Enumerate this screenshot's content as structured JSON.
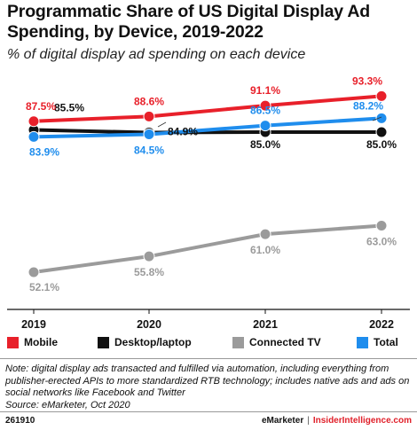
{
  "header": {
    "title": "Programmatic Share of US Digital Display Ad Spending, by Device, 2019-2022",
    "subtitle": "% of digital display ad spending on each device"
  },
  "chart_data": {
    "type": "line",
    "x": [
      "2019",
      "2020",
      "2021",
      "2022"
    ],
    "series": [
      {
        "name": "Mobile",
        "color": "#e8202a",
        "values": [
          87.5,
          88.6,
          91.1,
          93.3
        ],
        "labels": [
          "87.5%",
          "88.6%",
          "91.1%",
          "93.3%"
        ]
      },
      {
        "name": "Desktop/laptop",
        "color": "#111111",
        "values": [
          85.5,
          84.9,
          85.0,
          85.0
        ],
        "labels": [
          "85.5%",
          "84.9%",
          "85.0%",
          "85.0%"
        ]
      },
      {
        "name": "Connected TV",
        "color": "#9b9b9b",
        "values": [
          52.1,
          55.8,
          61.0,
          63.0
        ],
        "labels": [
          "52.1%",
          "55.8%",
          "61.0%",
          "63.0%"
        ]
      },
      {
        "name": "Total",
        "color": "#1f8ded",
        "values": [
          83.9,
          84.5,
          86.5,
          88.2
        ],
        "labels": [
          "83.9%",
          "84.5%",
          "86.5%",
          "88.2%"
        ]
      }
    ],
    "title": "Programmatic Share of US Digital Display Ad Spending, by Device, 2019-2022",
    "ylabel": "",
    "xlabel": "",
    "grid": false,
    "legend_placement": "bottom"
  },
  "note": "Note: digital display ads transacted and fulfilled via automation, including everything from publisher-erected APIs to more standardized RTB technology; includes native ads and ads on social networks like Facebook and Twitter",
  "source": "Source: eMarketer, Oct 2020",
  "footer": {
    "chart_id": "261910",
    "brand": "eMarketer",
    "separator": "|",
    "brand2": "InsiderIntelligence.com"
  }
}
